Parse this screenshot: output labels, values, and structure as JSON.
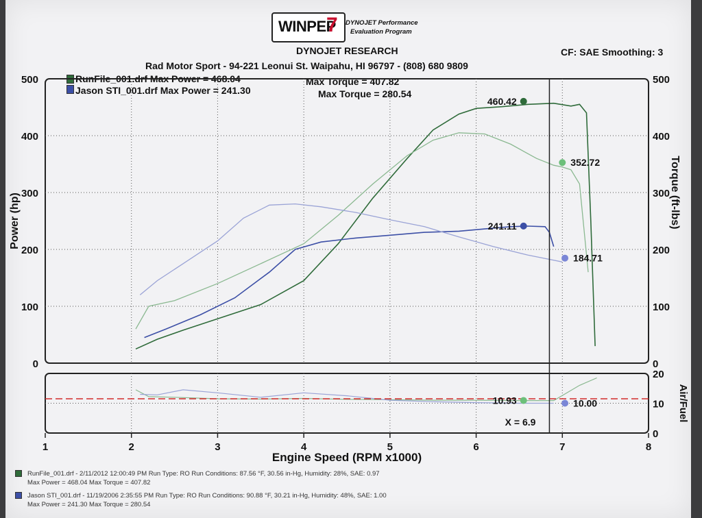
{
  "header": {
    "logo_text": "WINPEP",
    "logo_number": "7",
    "logo_subtitle_1": "DYNOJET Performance",
    "logo_subtitle_2": "Evaluation Program",
    "company": "DYNOJET RESEARCH",
    "shop_line": "Rad Motor Sport - 94-221 Leonui St. Waipahu, HI 96797 - (808) 680 9809",
    "cf_smoothing": "CF: SAE  Smoothing: 3"
  },
  "colors": {
    "run1": "#2f6b3a",
    "run1_light": "#8ab890",
    "run2": "#3c4fa6",
    "run2_light": "#9aa3d6",
    "afr_target": "#d22a2a"
  },
  "chart_data": [
    {
      "type": "line",
      "title": "",
      "xlabel": "Engine Speed (RPM x1000)",
      "ylabel_left": "Power (hp)",
      "ylabel_right": "Torque (ft-lbs)",
      "xlim": [
        1,
        8
      ],
      "ylim": [
        0,
        500
      ],
      "x_ticks": [
        "1",
        "2",
        "3",
        "4",
        "5",
        "6",
        "7",
        "8"
      ],
      "y_ticks_left": [
        "0",
        "100",
        "200",
        "300",
        "400",
        "500"
      ],
      "y_ticks_right": [
        "0",
        "100",
        "200",
        "300",
        "400",
        "500"
      ],
      "grid": true,
      "legend": [
        {
          "text": "RunFile_001.drf Max Power = 468.04",
          "torque_text": "Max Torque = 407.82"
        },
        {
          "text": "Jason STI_001.drf Max Power = 241.30",
          "torque_text": "Max Torque = 280.54"
        }
      ],
      "cursor_x": 6.85,
      "series": [
        {
          "measure": "power",
          "run": 1,
          "x": [
            2.05,
            2.3,
            2.6,
            3.0,
            3.5,
            4.0,
            4.4,
            4.8,
            5.2,
            5.5,
            5.8,
            6.0,
            6.3,
            6.6,
            6.9,
            7.1,
            7.2,
            7.28,
            7.33,
            7.38
          ],
          "y": [
            25,
            42,
            58,
            78,
            103,
            145,
            210,
            290,
            360,
            410,
            438,
            448,
            451,
            455,
            457,
            452,
            455,
            440,
            250,
            30
          ]
        },
        {
          "measure": "torque",
          "run": 1,
          "x": [
            2.05,
            2.2,
            2.5,
            3.0,
            3.5,
            4.0,
            4.4,
            4.8,
            5.2,
            5.5,
            5.8,
            6.1,
            6.4,
            6.7,
            6.9,
            7.0,
            7.1,
            7.2,
            7.3
          ],
          "y": [
            60,
            100,
            110,
            140,
            175,
            210,
            260,
            315,
            365,
            392,
            405,
            403,
            385,
            360,
            348,
            345,
            340,
            315,
            160
          ]
        },
        {
          "measure": "power",
          "run": 2,
          "x": [
            2.15,
            2.4,
            2.8,
            3.2,
            3.6,
            3.9,
            4.2,
            4.6,
            5.0,
            5.4,
            5.8,
            6.1,
            6.4,
            6.6,
            6.8,
            6.85,
            6.9
          ],
          "y": [
            45,
            60,
            85,
            115,
            160,
            200,
            213,
            220,
            225,
            230,
            232,
            236,
            240,
            241,
            240,
            230,
            205
          ]
        },
        {
          "measure": "torque",
          "run": 2,
          "x": [
            2.1,
            2.3,
            2.6,
            3.0,
            3.3,
            3.6,
            3.9,
            4.2,
            4.6,
            5.0,
            5.4,
            5.8,
            6.2,
            6.6,
            7.0
          ],
          "y": [
            120,
            145,
            175,
            215,
            255,
            278,
            280,
            275,
            265,
            252,
            240,
            222,
            205,
            190,
            178
          ]
        }
      ],
      "markers": [
        {
          "series_run": 1,
          "measure": "power",
          "x": 6.55,
          "y": 460.42,
          "label": "460.42"
        },
        {
          "series_run": 1,
          "measure": "torque",
          "x": 7.0,
          "y": 352.72,
          "label": "352.72"
        },
        {
          "series_run": 2,
          "measure": "power",
          "x": 6.55,
          "y": 241.11,
          "label": "241.11"
        },
        {
          "series_run": 2,
          "measure": "torque",
          "x": 7.03,
          "y": 184.71,
          "label": "184.71"
        }
      ]
    },
    {
      "type": "line",
      "title": "",
      "ylabel_right": "Air/Fuel",
      "xlim": [
        1,
        8
      ],
      "ylim": [
        0,
        20
      ],
      "y_ticks_right": [
        "0",
        "10",
        "20"
      ],
      "target_afr": 11.5,
      "grid": true,
      "cursor_label": "X = 6.9",
      "series": [
        {
          "run": 1,
          "x": [
            2.05,
            2.2,
            2.5,
            3.0,
            3.5,
            4.0,
            4.5,
            5.0,
            5.5,
            6.0,
            6.5,
            6.9,
            7.2,
            7.4
          ],
          "y": [
            14.5,
            12.2,
            12.0,
            11.5,
            11.4,
            11.6,
            11.3,
            11.2,
            11.0,
            11.0,
            10.9,
            10.9,
            16.0,
            18.5
          ]
        },
        {
          "run": 2,
          "x": [
            2.1,
            2.3,
            2.6,
            3.0,
            3.5,
            4.0,
            4.5,
            5.0,
            5.5,
            6.0,
            6.5,
            6.9
          ],
          "y": [
            13.0,
            12.8,
            14.5,
            13.5,
            12.0,
            13.5,
            12.5,
            11.0,
            10.5,
            10.2,
            10.0,
            10.0
          ]
        }
      ],
      "markers": [
        {
          "series_run": 1,
          "x": 6.55,
          "y": 10.93,
          "label": "10.93"
        },
        {
          "series_run": 2,
          "x": 7.03,
          "y": 10.0,
          "label": "10.00"
        }
      ]
    }
  ],
  "footer": {
    "run1_line1": "RunFile_001.drf - 2/11/2012 12:00:49 PM  Run Type: RO  Run Conditions: 87.56 °F, 30.56 in-Hg,  Humidity:  28%, SAE: 0.97",
    "run1_line2": "Max Power = 468.04  Max Torque = 407.82",
    "run2_line1": "Jason STI_001.drf - 11/19/2006 2:35:55 PM  Run Type: RO  Run Conditions: 90.88 °F, 30.21 in-Hg,  Humidity:  48%, SAE: 1.00",
    "run2_line2": "Max Power = 241.30  Max Torque = 280.54"
  }
}
